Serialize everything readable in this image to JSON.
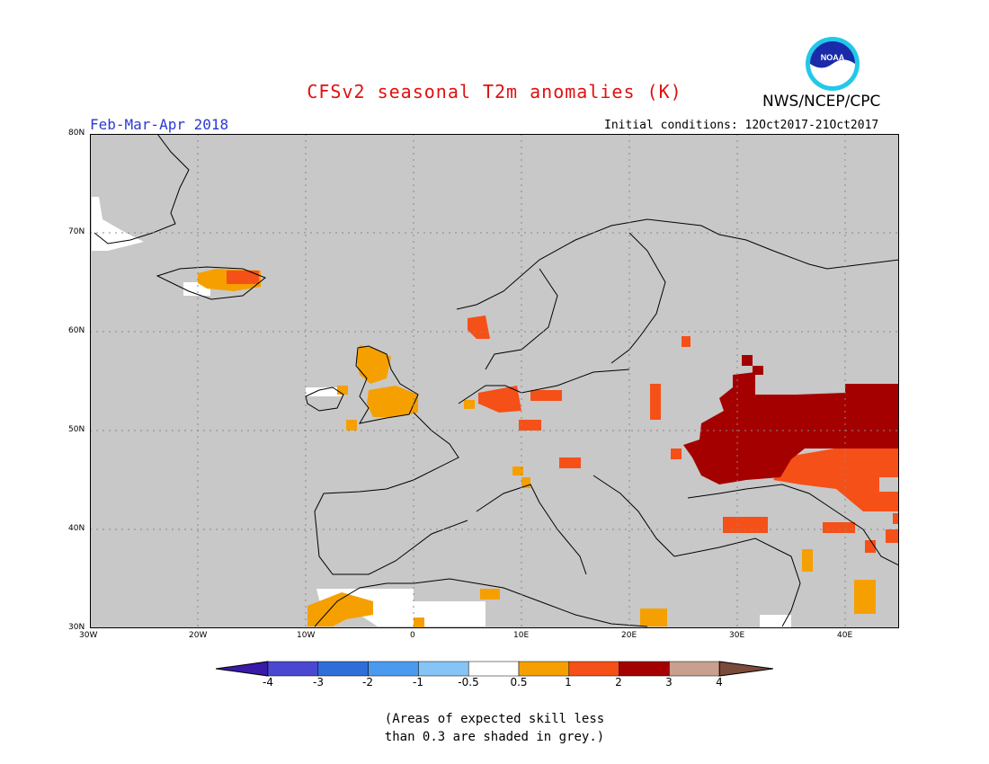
{
  "header": {
    "title": "CFSv2 seasonal T2m anomalies (K)",
    "title_color": "#e01010",
    "agency": "NWS/NCEP/CPC",
    "season": "Feb-Mar-Apr 2018",
    "season_color": "#2a3ad0",
    "initial_conditions": "Initial conditions: 12Oct2017-21Oct2017"
  },
  "logo": {
    "icon": "noaa-logo-icon",
    "text": "NOAA"
  },
  "map": {
    "lon_labels": [
      "30W",
      "20W",
      "10W",
      "0",
      "10E",
      "20E",
      "30E",
      "40E"
    ],
    "lat_labels": [
      "30N",
      "40N",
      "50N",
      "60N",
      "70N",
      "80N"
    ],
    "lon_range": [
      -30,
      45
    ],
    "lat_range": [
      30,
      80
    ],
    "background_color": "#c8c8c8",
    "grid": "dotted"
  },
  "colorbar": {
    "labels": [
      "-4",
      "-3",
      "-2",
      "-1",
      "-0.5",
      "0.5",
      "1",
      "2",
      "3",
      "4"
    ],
    "colors": [
      "#3a1aa8",
      "#4a48d0",
      "#2e6ed8",
      "#4a9af0",
      "#86c4f6",
      "#ffffff",
      "#f5a000",
      "#f55018",
      "#a50000",
      "#c8a090",
      "#7a4a3a"
    ]
  },
  "note": {
    "line1": "(Areas of expected skill less",
    "line2": "than 0.3 are shaded in grey.)"
  },
  "anomaly_regions": [
    {
      "name": "russia-ukraine-hot",
      "level": "2-3",
      "color": "#a50000"
    },
    {
      "name": "black-sea-caucasus",
      "level": "1-2",
      "color": "#f55018"
    },
    {
      "name": "uk-iceland-moderate",
      "level": "0.5-1",
      "color": "#f5a000"
    },
    {
      "name": "north-africa-neutral",
      "level": "-0.5-0.5",
      "color": "#ffffff"
    }
  ]
}
